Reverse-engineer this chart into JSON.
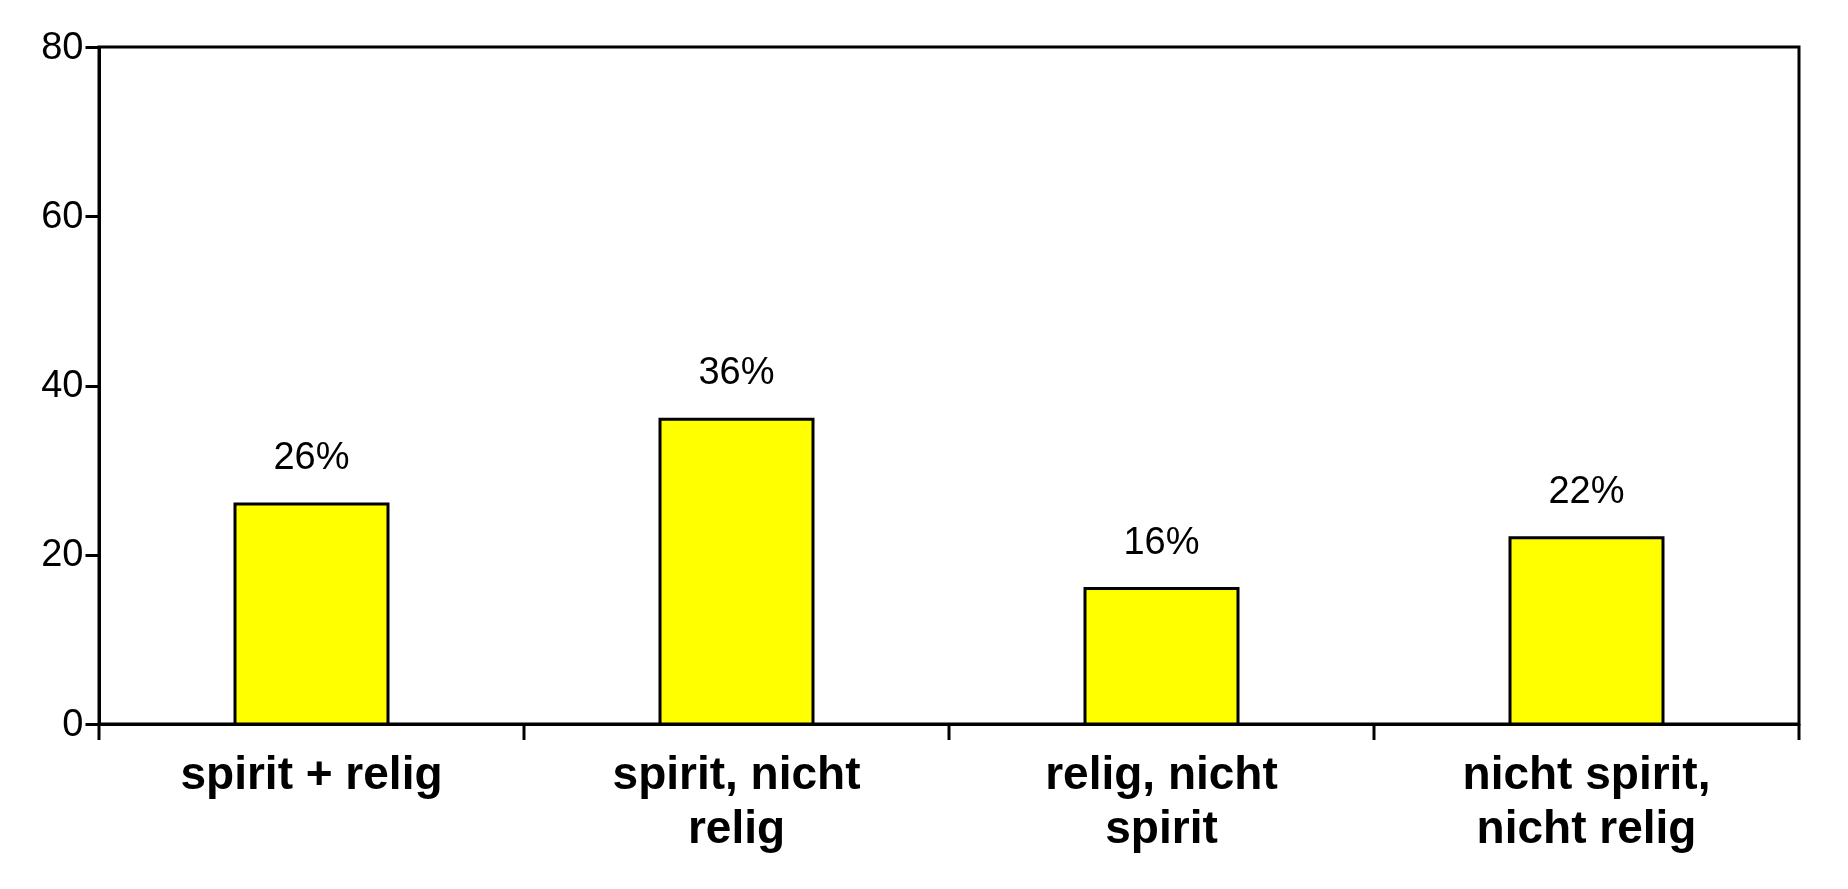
{
  "chart_data": {
    "type": "bar",
    "categories": [
      "spirit + relig",
      "spirit, nicht relig",
      "relig, nicht spirit",
      "nicht spirit, nicht relig"
    ],
    "values": [
      26,
      36,
      16,
      22
    ],
    "value_labels": [
      "26%",
      "36%",
      "16%",
      "22%"
    ],
    "color": "#ffff00",
    "ylim": [
      0,
      80
    ],
    "yticks": [
      0,
      20,
      40,
      60,
      80
    ],
    "grid": false
  }
}
